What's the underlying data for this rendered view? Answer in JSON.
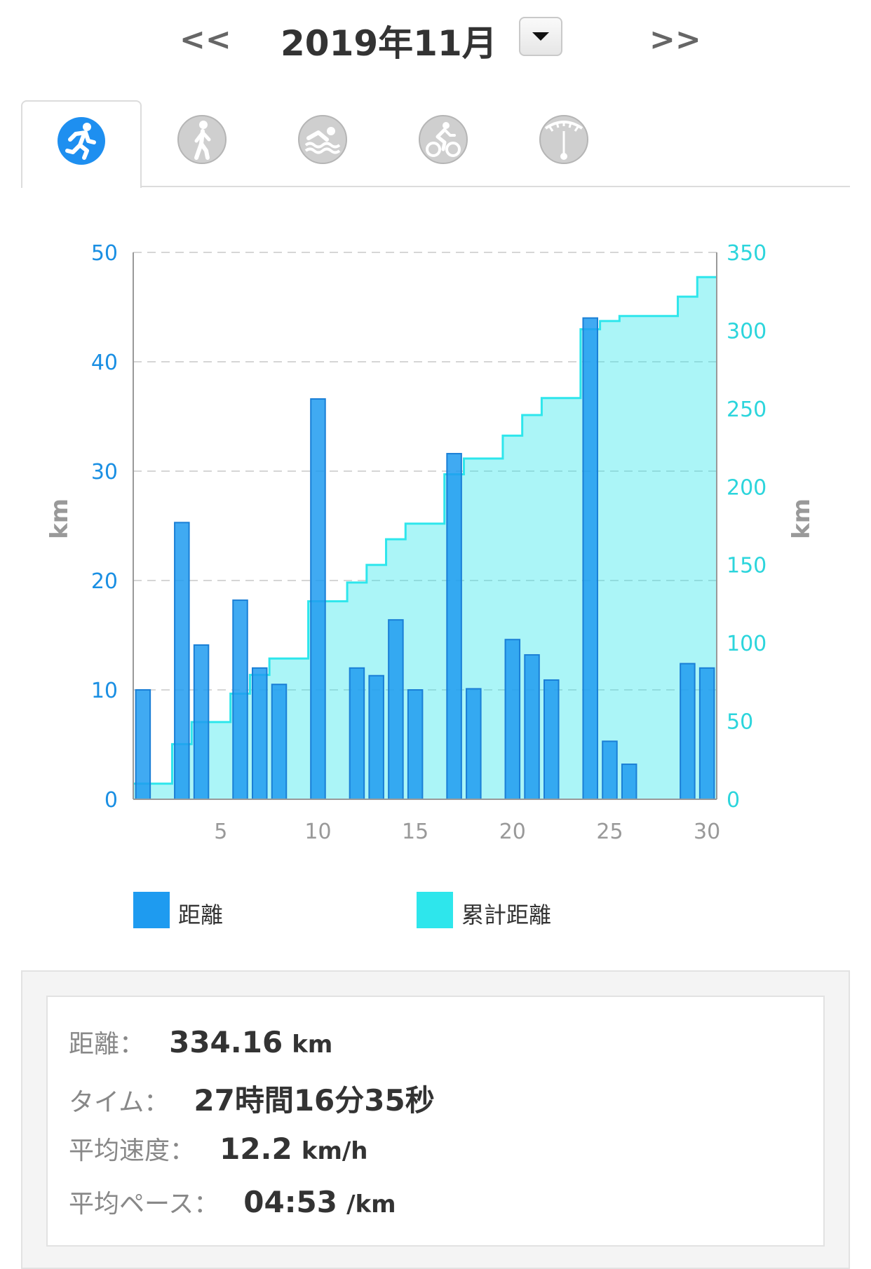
{
  "header": {
    "prev_label": "<<",
    "next_label": ">>",
    "title": "2019年11月"
  },
  "tabs": [
    {
      "name": "running",
      "icon": "runner-icon",
      "active": true
    },
    {
      "name": "walking",
      "icon": "walker-icon",
      "active": false
    },
    {
      "name": "swimming",
      "icon": "swimmer-icon",
      "active": false
    },
    {
      "name": "cycling",
      "icon": "cyclist-icon",
      "active": false
    },
    {
      "name": "meter",
      "icon": "gauge-icon",
      "active": false
    }
  ],
  "colors": {
    "distance_bar": "#1e9bf0",
    "cumulative": "#2ee6ec",
    "left_axis": "#1a8fe3",
    "right_axis": "#2cd5dc",
    "x_axis": "#999999",
    "axis_unit": "#999999"
  },
  "chart_data": {
    "type": "bar",
    "x": [
      1,
      2,
      3,
      4,
      5,
      6,
      7,
      8,
      9,
      10,
      11,
      12,
      13,
      14,
      15,
      16,
      17,
      18,
      19,
      20,
      21,
      22,
      23,
      24,
      25,
      26,
      27,
      28,
      29,
      30
    ],
    "series": [
      {
        "name": "距離",
        "axis": "left",
        "values": [
          10,
          0,
          25.3,
          14.1,
          0,
          18.2,
          12,
          10.5,
          0,
          36.6,
          0,
          12,
          11.3,
          16.4,
          10,
          0,
          31.6,
          10.1,
          0,
          14.6,
          13.2,
          10.9,
          0,
          44,
          5.3,
          3.2,
          0,
          0,
          12.4,
          12
        ]
      },
      {
        "name": "累計距離",
        "axis": "right",
        "type": "area-step",
        "values": [
          10,
          10,
          35.3,
          49.4,
          49.4,
          67.6,
          79.6,
          90.1,
          90.1,
          126.7,
          126.7,
          138.7,
          150,
          166.4,
          176.4,
          176.4,
          208,
          218.1,
          218.1,
          232.7,
          245.9,
          256.8,
          256.8,
          300.8,
          306.1,
          309.3,
          309.3,
          309.3,
          321.7,
          334.16
        ]
      }
    ],
    "left_axis": {
      "label": "km",
      "ticks": [
        "0",
        "10",
        "20",
        "30",
        "40",
        "50"
      ],
      "range": [
        0,
        50
      ]
    },
    "right_axis": {
      "label": "km",
      "ticks": [
        "0",
        "50",
        "100",
        "150",
        "200",
        "250",
        "300",
        "350"
      ],
      "range": [
        0,
        350
      ]
    },
    "x_axis": {
      "ticks": [
        "5",
        "10",
        "15",
        "20",
        "25",
        "30"
      ],
      "range": [
        1,
        30
      ]
    },
    "grid": true,
    "legend": [
      {
        "label": "距離",
        "color": "#1e9bf0"
      },
      {
        "label": "累計距離",
        "color": "#2ee6ec"
      }
    ]
  },
  "summary": {
    "distance": {
      "label": "距離：",
      "value": "334.16",
      "unit": "km"
    },
    "time": {
      "label": "タイム：",
      "value": "27時間16分35秒"
    },
    "avg_speed": {
      "label": "平均速度：",
      "value": "12.2",
      "unit": "km/h"
    },
    "avg_pace": {
      "label": "平均ペース：",
      "value": "04:53",
      "unit": "/km"
    }
  }
}
